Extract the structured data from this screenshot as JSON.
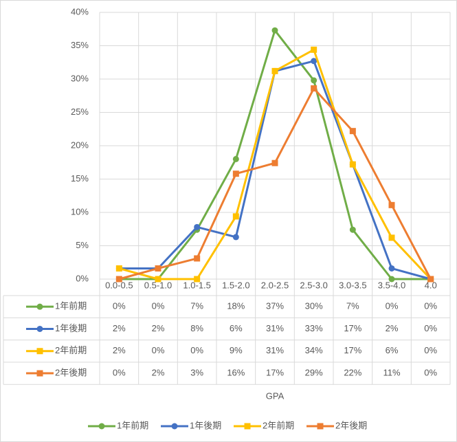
{
  "chart_data": {
    "type": "line",
    "xlabel": "GPA",
    "categories": [
      "0.0-0.5",
      "0.5-1.0",
      "1.0-1.5",
      "1.5-2.0",
      "2.0-2.5",
      "2.5-3.0",
      "3.0-3.5",
      "3.5-4.0",
      "4.0"
    ],
    "series": [
      {
        "name": "1年前期",
        "color": "#70ad47",
        "marker": "circle",
        "values": [
          0,
          0,
          7.4,
          18,
          37.3,
          29.8,
          7.4,
          0,
          0
        ],
        "value_labels": [
          "0%",
          "0%",
          "7%",
          "18%",
          "37%",
          "30%",
          "7%",
          "0%",
          "0%"
        ]
      },
      {
        "name": "1年後期",
        "color": "#4472c4",
        "marker": "circle",
        "values": [
          1.6,
          1.6,
          7.8,
          6.3,
          31.2,
          32.7,
          17.2,
          1.6,
          0
        ],
        "value_labels": [
          "2%",
          "2%",
          "8%",
          "6%",
          "31%",
          "33%",
          "17%",
          "2%",
          "0%"
        ]
      },
      {
        "name": "2年前期",
        "color": "#ffc000",
        "marker": "square",
        "values": [
          1.6,
          0,
          0,
          9.4,
          31.2,
          34.4,
          17.2,
          6.2,
          0
        ],
        "value_labels": [
          "2%",
          "0%",
          "0%",
          "9%",
          "31%",
          "34%",
          "17%",
          "6%",
          "0%"
        ]
      },
      {
        "name": "2年後期",
        "color": "#ed7d31",
        "marker": "square",
        "values": [
          0,
          1.6,
          3.1,
          15.8,
          17.4,
          28.6,
          22.2,
          11.1,
          0
        ],
        "value_labels": [
          "0%",
          "2%",
          "3%",
          "16%",
          "17%",
          "29%",
          "22%",
          "11%",
          "0%"
        ]
      }
    ],
    "ylim": [
      0,
      40
    ],
    "yticks": [
      {
        "value": 0,
        "label": "0%"
      },
      {
        "value": 5,
        "label": "5%"
      },
      {
        "value": 10,
        "label": "10%"
      },
      {
        "value": 15,
        "label": "15%"
      },
      {
        "value": 20,
        "label": "20%"
      },
      {
        "value": 25,
        "label": "25%"
      },
      {
        "value": 30,
        "label": "30%"
      },
      {
        "value": 35,
        "label": "35%"
      },
      {
        "value": 40,
        "label": "40%"
      }
    ],
    "grid": true,
    "legend": "bottom"
  }
}
